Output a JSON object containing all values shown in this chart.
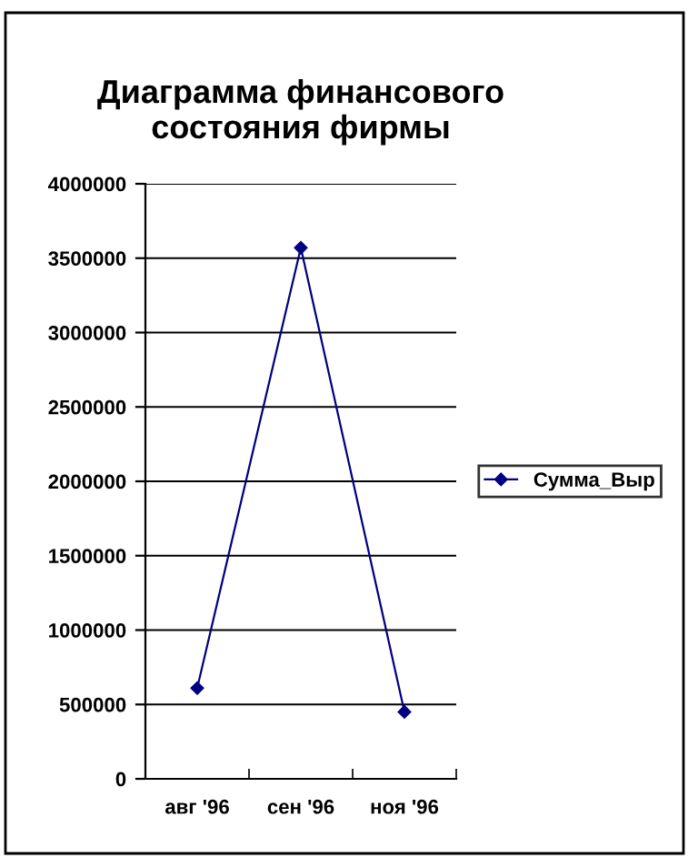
{
  "chart_data": {
    "type": "line",
    "title": "Диаграмма финансового\nсостояния фирмы",
    "categories": [
      "авг '96",
      "сен '96",
      "ноя '96"
    ],
    "series": [
      {
        "name": "Сумма_Выр",
        "color": "#000080",
        "values": [
          610000,
          3570000,
          450000
        ]
      }
    ],
    "ylim": [
      0,
      4000000
    ],
    "yticks": [
      0,
      500000,
      1000000,
      1500000,
      2000000,
      2500000,
      3000000,
      3500000,
      4000000
    ],
    "grid": "y",
    "legend": "right",
    "marker": "diamond",
    "line_style": "solid"
  }
}
